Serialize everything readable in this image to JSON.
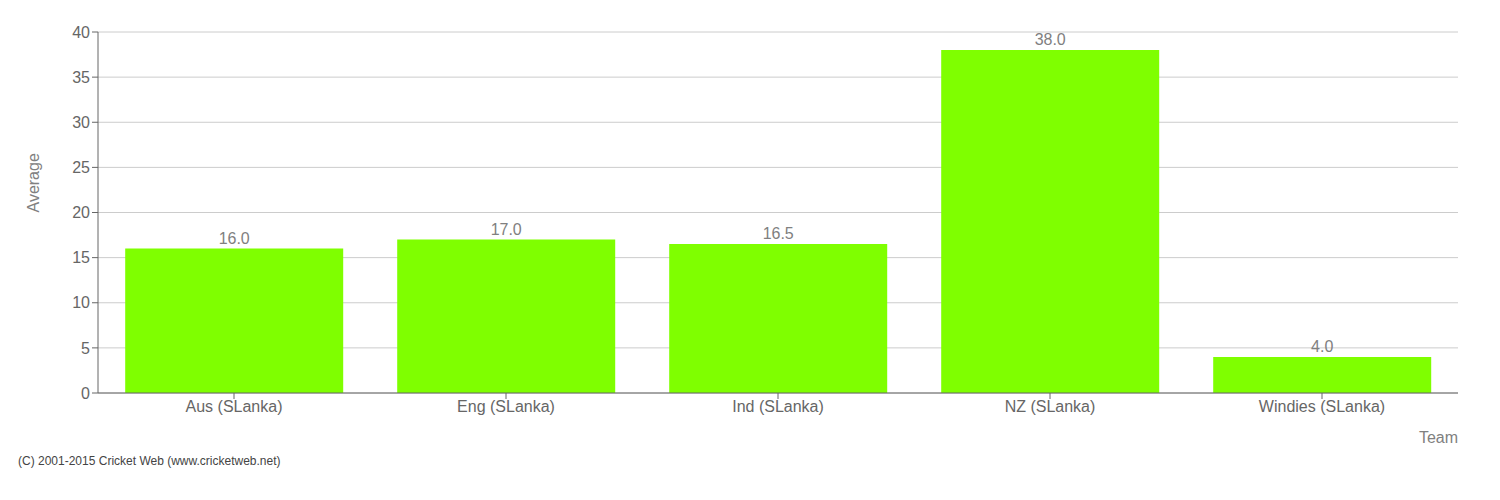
{
  "chart_data": {
    "type": "bar",
    "xlabel": "Team",
    "ylabel": "Average",
    "categories": [
      "Aus (SLanka)",
      "Eng (SLanka)",
      "Ind (SLanka)",
      "NZ (SLanka)",
      "Windies (SLanka)"
    ],
    "values": [
      16.0,
      17.0,
      16.5,
      38.0,
      4.0
    ],
    "value_labels": [
      "16.0",
      "17.0",
      "16.5",
      "38.0",
      "4.0"
    ],
    "data_labels": true,
    "color": "#7fff00",
    "ylim": [
      0,
      40
    ],
    "yticks": [
      0,
      5,
      10,
      15,
      20,
      25,
      30,
      35,
      40
    ],
    "grid": true,
    "annotations": [
      "(C) 2001-2015 Cricket Web (www.cricketweb.net)"
    ]
  }
}
